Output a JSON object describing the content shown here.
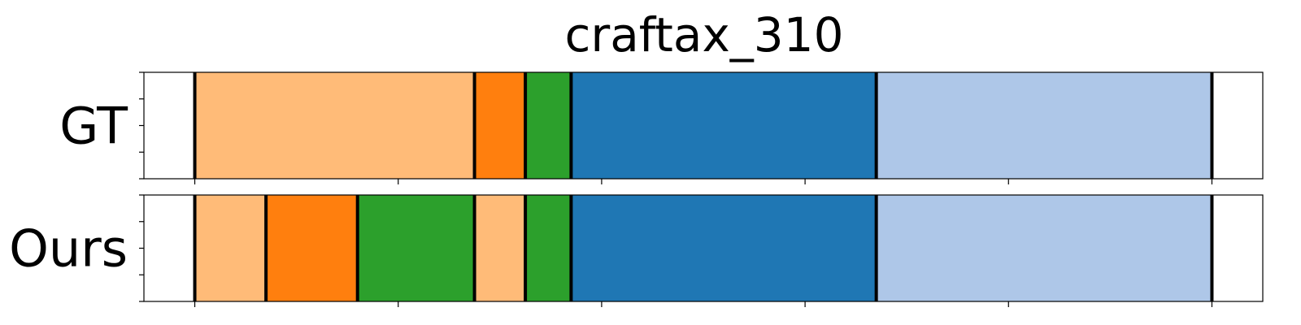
{
  "chart_data": {
    "type": "segmentation-timeline",
    "title": "craftax_310",
    "xlim": [
      0,
      220
    ],
    "rows": [
      {
        "label": "GT",
        "segments": [
          {
            "start": 10,
            "end": 65,
            "color": "#ffbb78"
          },
          {
            "start": 65,
            "end": 75,
            "color": "#ff7f0e"
          },
          {
            "start": 75,
            "end": 84,
            "color": "#2ca02c"
          },
          {
            "start": 84,
            "end": 144,
            "color": "#1f77b4"
          },
          {
            "start": 144,
            "end": 210,
            "color": "#aec7e8"
          }
        ]
      },
      {
        "label": "Ours",
        "segments": [
          {
            "start": 10,
            "end": 24,
            "color": "#ffbb78"
          },
          {
            "start": 24,
            "end": 42,
            "color": "#ff7f0e"
          },
          {
            "start": 42,
            "end": 65,
            "color": "#2ca02c"
          },
          {
            "start": 65,
            "end": 75,
            "color": "#ffbb78"
          },
          {
            "start": 75,
            "end": 84,
            "color": "#2ca02c"
          },
          {
            "start": 84,
            "end": 144,
            "color": "#1f77b4"
          },
          {
            "start": 144,
            "end": 210,
            "color": "#aec7e8"
          }
        ]
      }
    ],
    "x_ticks": [
      10,
      50,
      90,
      130,
      170,
      210
    ],
    "tick_labels_visible": false,
    "y_ticks_per_row": 5,
    "boundary_color": "#000000"
  }
}
